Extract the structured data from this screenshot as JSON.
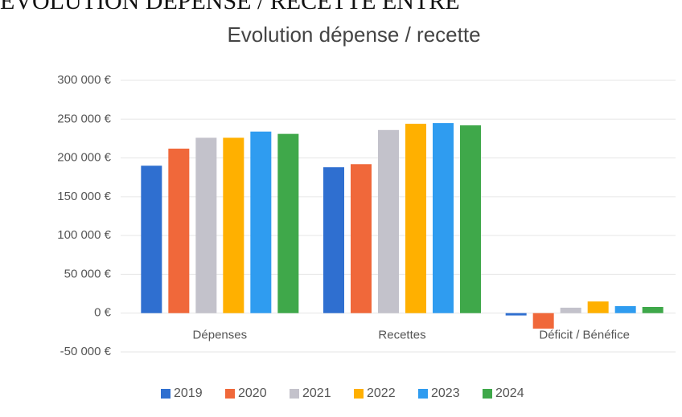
{
  "page_heading": "EVOLUTION DÉPENSE / RECETTE ENTRE",
  "chart_data": {
    "type": "bar",
    "title": "Evolution dépense / recette",
    "categories": [
      "Dépenses",
      "Recettes",
      "Déficit / Bénéfice"
    ],
    "series": [
      {
        "name": "2019",
        "color": "#2f6fd0",
        "values": [
          190000,
          188000,
          -3000
        ]
      },
      {
        "name": "2020",
        "color": "#f0683a",
        "values": [
          212000,
          192000,
          -20000
        ]
      },
      {
        "name": "2021",
        "color": "#c3c2cb",
        "values": [
          226000,
          236000,
          7000
        ]
      },
      {
        "name": "2022",
        "color": "#ffb000",
        "values": [
          226000,
          244000,
          15000
        ]
      },
      {
        "name": "2023",
        "color": "#2f9cf0",
        "values": [
          234000,
          245000,
          9000
        ]
      },
      {
        "name": "2024",
        "color": "#3fa84a",
        "values": [
          231000,
          242000,
          8000
        ]
      }
    ],
    "ylim": [
      -50000,
      300000
    ],
    "yticks": [
      {
        "value": -50000,
        "label": "-50 000 €"
      },
      {
        "value": 0,
        "label": "0 €"
      },
      {
        "value": 50000,
        "label": "50 000 €"
      },
      {
        "value": 100000,
        "label": "100 000 €"
      },
      {
        "value": 150000,
        "label": "150 000 €"
      },
      {
        "value": 200000,
        "label": "200 000 €"
      },
      {
        "value": 250000,
        "label": "250 000 €"
      },
      {
        "value": 300000,
        "label": "300 000 €"
      }
    ],
    "grid": true,
    "legend": "bottom"
  }
}
